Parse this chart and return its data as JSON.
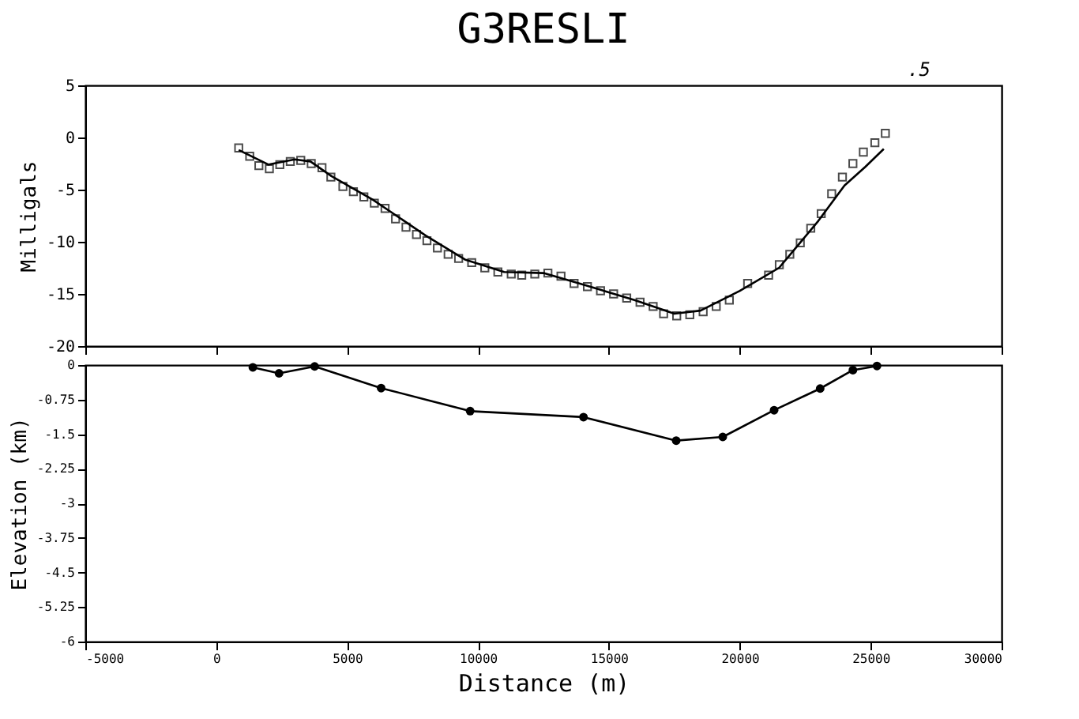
{
  "chart_data": [
    {
      "type": "scatter",
      "title": "G3RESLI",
      "ylabel": "Milligals",
      "annotations": [
        ".5"
      ],
      "xlim": [
        -5000,
        30000
      ],
      "xticks": [
        -5000,
        0,
        5000,
        10000,
        15000,
        20000,
        25000,
        30000
      ],
      "ylim": [
        -20,
        5
      ],
      "yticks": [
        5,
        0,
        -5,
        -10,
        -15,
        -20
      ],
      "tick_labels": "y",
      "grid": false,
      "series": [
        {
          "marker": "square",
          "color": "#000000",
          "x": [
            860,
            1280,
            1630,
            2030,
            2430,
            2830,
            3230,
            3630,
            4040,
            4380,
            4840,
            5240,
            5640,
            6040,
            6450,
            6850,
            7250,
            7650,
            8050,
            8450,
            8860,
            9260,
            9760,
            10260,
            10760,
            11270,
            11670,
            12170,
            12670,
            13170,
            13670,
            14180,
            14680,
            15180,
            15680,
            16190,
            16690,
            17090,
            17590,
            18090,
            18600,
            19100,
            19600,
            20300,
            21100,
            21510,
            21910,
            22310,
            22710,
            23110,
            23510,
            23920,
            24320,
            24720,
            25160,
            25560
          ],
          "values": [
            -1.0,
            -1.8,
            -2.7,
            -3.0,
            -2.6,
            -2.3,
            -2.2,
            -2.5,
            -2.9,
            -3.8,
            -4.7,
            -5.2,
            -5.7,
            -6.3,
            -6.8,
            -7.8,
            -8.6,
            -9.3,
            -9.9,
            -10.6,
            -11.2,
            -11.6,
            -12.0,
            -12.5,
            -12.9,
            -13.1,
            -13.2,
            -13.1,
            -13.0,
            -13.3,
            -14.0,
            -14.3,
            -14.7,
            -15.0,
            -15.4,
            -15.8,
            -16.2,
            -16.9,
            -17.1,
            -17.0,
            -16.7,
            -16.2,
            -15.6,
            -14.0,
            -13.2,
            -12.2,
            -11.2,
            -10.1,
            -8.7,
            -7.3,
            -5.4,
            -3.8,
            -2.5,
            -1.4,
            -0.5,
            0.4
          ]
        },
        {
          "type": "line",
          "marker": "none",
          "line_style": "solid",
          "color": "#000000",
          "x": [
            860,
            2000,
            3000,
            3600,
            4400,
            6000,
            8000,
            9500,
            11000,
            12500,
            14000,
            16000,
            17500,
            18500,
            20000,
            21500,
            23000,
            24000,
            24800,
            25500
          ],
          "values": [
            -1.2,
            -2.6,
            -2.1,
            -2.3,
            -3.7,
            -6.0,
            -9.4,
            -11.7,
            -12.9,
            -13.0,
            -14.1,
            -15.6,
            -16.9,
            -16.6,
            -14.7,
            -12.5,
            -8.0,
            -4.6,
            -2.8,
            -1.1
          ]
        }
      ]
    },
    {
      "type": "line",
      "xlabel": "Distance (m)",
      "ylabel": "Elevation (km)",
      "xlim": [
        -5000,
        30000
      ],
      "xticks": [
        -5000,
        0,
        5000,
        10000,
        15000,
        20000,
        25000,
        30000
      ],
      "ylim": [
        -6,
        0
      ],
      "yticks": [
        0,
        -0.75,
        -1.5,
        -2.25,
        -3,
        -3.75,
        -4.5,
        -5.25,
        -6
      ],
      "grid": false,
      "series": [
        {
          "marker": "circle",
          "line_style": "solid",
          "color": "#000000",
          "x": [
            1400,
            2400,
            3760,
            6300,
            9700,
            14030,
            17570,
            19350,
            21310,
            23070,
            24320,
            25240
          ],
          "values": [
            -0.05,
            -0.18,
            -0.03,
            -0.5,
            -1.0,
            -1.13,
            -1.64,
            -1.56,
            -0.98,
            -0.51,
            -0.11,
            -0.02
          ]
        }
      ]
    }
  ]
}
